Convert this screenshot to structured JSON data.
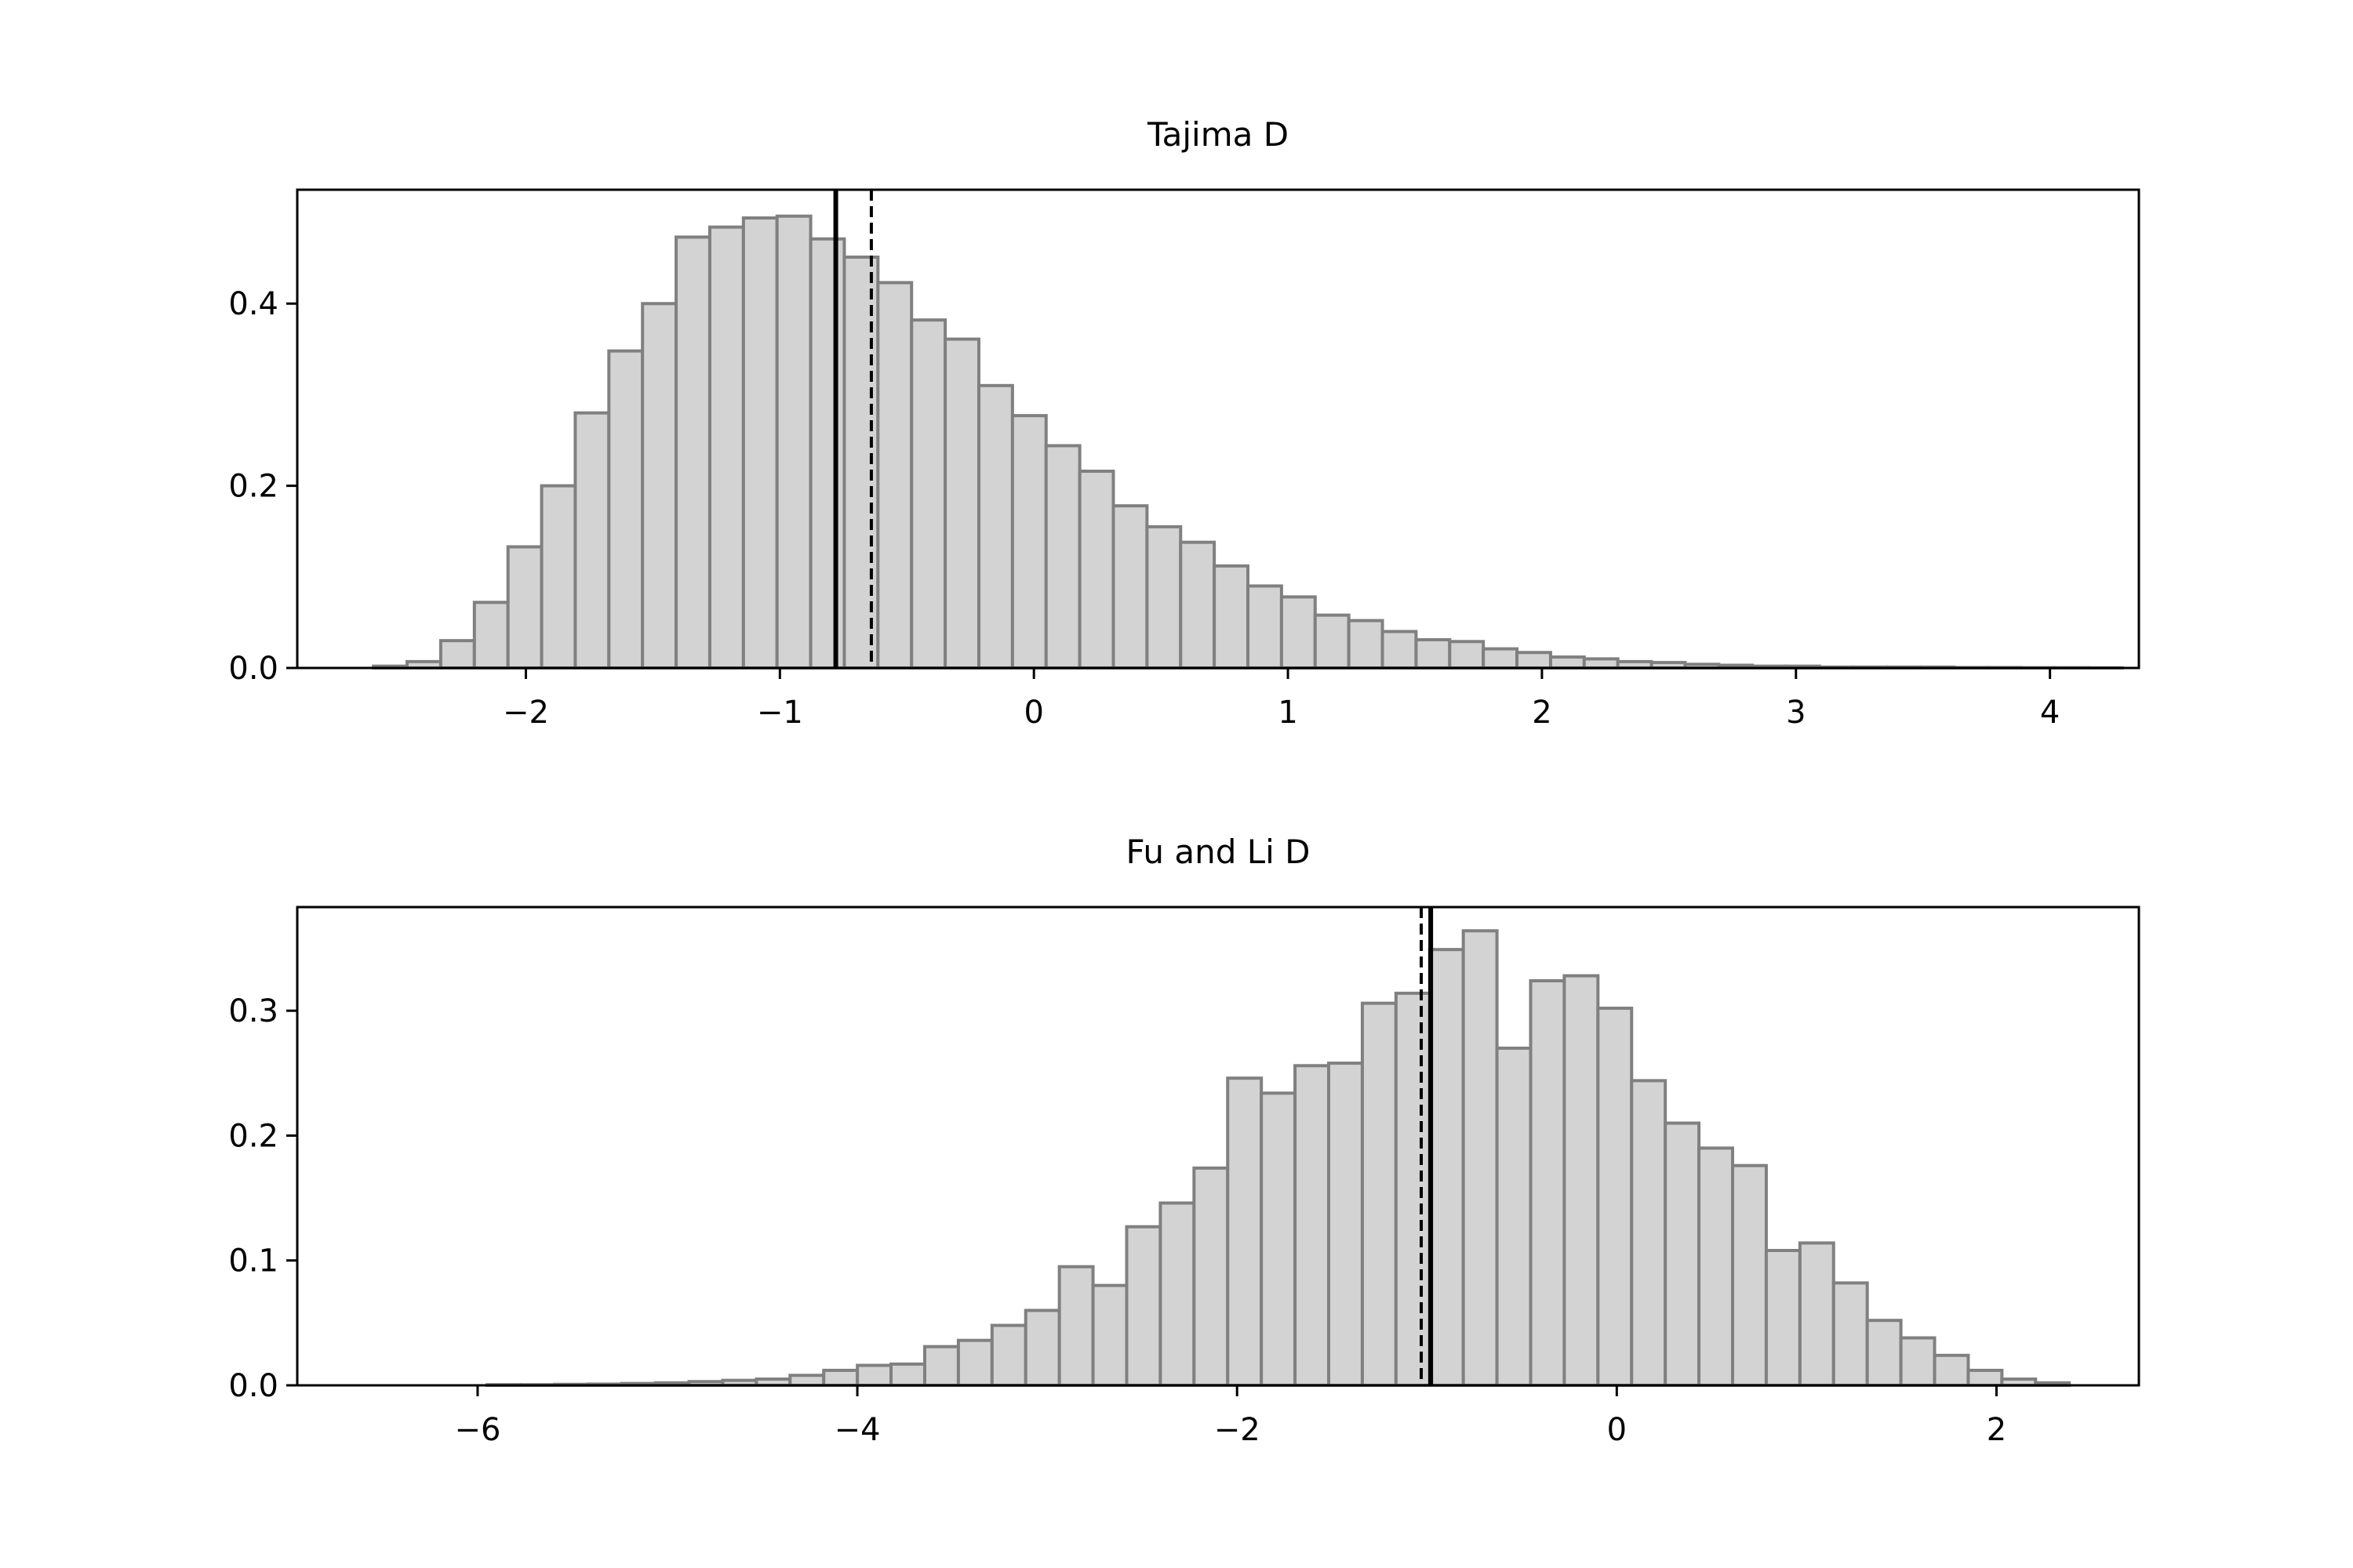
{
  "colors": {
    "bar_fill": "#d3d3d3",
    "bar_edge": "#808080",
    "axis": "#000000",
    "marker_line": "#000000"
  },
  "chart_data": [
    {
      "type": "bar",
      "subtype": "histogram",
      "title": "Tajima D",
      "xlabel": "",
      "ylabel": "",
      "xlim": [
        -2.9,
        4.35
      ],
      "ylim": [
        0,
        0.525
      ],
      "xticks": [
        -2,
        -1,
        0,
        1,
        2,
        3,
        4
      ],
      "xtick_labels": [
        "−2",
        "−1",
        "0",
        "1",
        "2",
        "3",
        "4"
      ],
      "yticks": [
        0.0,
        0.2,
        0.4
      ],
      "ytick_labels": [
        "0.0",
        "0.2",
        "0.4"
      ],
      "grid": false,
      "bins": {
        "start": -2.6,
        "width": 0.1324,
        "values": [
          0.002,
          0.007,
          0.03,
          0.072,
          0.133,
          0.2,
          0.28,
          0.348,
          0.4,
          0.473,
          0.484,
          0.494,
          0.496,
          0.471,
          0.451,
          0.423,
          0.382,
          0.361,
          0.31,
          0.277,
          0.244,
          0.216,
          0.178,
          0.155,
          0.138,
          0.112,
          0.09,
          0.078,
          0.058,
          0.052,
          0.04,
          0.031,
          0.029,
          0.021,
          0.017,
          0.012,
          0.01,
          0.007,
          0.006,
          0.004,
          0.003,
          0.002,
          0.002,
          0.001,
          0.001,
          0.001,
          0.001,
          0.0005,
          0.0005,
          0.0003,
          0.0003,
          0.0002
        ]
      },
      "vlines": [
        {
          "x": -0.78,
          "style": "solid"
        },
        {
          "x": -0.64,
          "style": "dashed"
        }
      ]
    },
    {
      "type": "bar",
      "subtype": "histogram",
      "title": "Fu and Li D",
      "xlabel": "",
      "ylabel": "",
      "xlim": [
        -6.95,
        2.75
      ],
      "ylim": [
        0,
        0.383
      ],
      "xticks": [
        -6,
        -4,
        -2,
        0,
        2
      ],
      "xtick_labels": [
        "−6",
        "−4",
        "−2",
        "0",
        "2"
      ],
      "yticks": [
        0.0,
        0.1,
        0.2,
        0.3
      ],
      "ytick_labels": [
        "0.0",
        "0.1",
        "0.2",
        "0.3"
      ],
      "grid": false,
      "bins": {
        "start": -5.95,
        "width": 0.1773,
        "values": [
          0.0005,
          0.0005,
          0.0008,
          0.001,
          0.0015,
          0.002,
          0.003,
          0.004,
          0.005,
          0.008,
          0.012,
          0.016,
          0.017,
          0.031,
          0.036,
          0.048,
          0.06,
          0.095,
          0.08,
          0.127,
          0.146,
          0.174,
          0.246,
          0.234,
          0.256,
          0.258,
          0.306,
          0.314,
          0.349,
          0.364,
          0.27,
          0.324,
          0.328,
          0.302,
          0.244,
          0.21,
          0.19,
          0.176,
          0.108,
          0.114,
          0.082,
          0.052,
          0.038,
          0.024,
          0.012,
          0.005,
          0.002
        ]
      },
      "vlines": [
        {
          "x": -1.03,
          "style": "dashed"
        },
        {
          "x": -0.98,
          "style": "solid"
        }
      ]
    }
  ]
}
